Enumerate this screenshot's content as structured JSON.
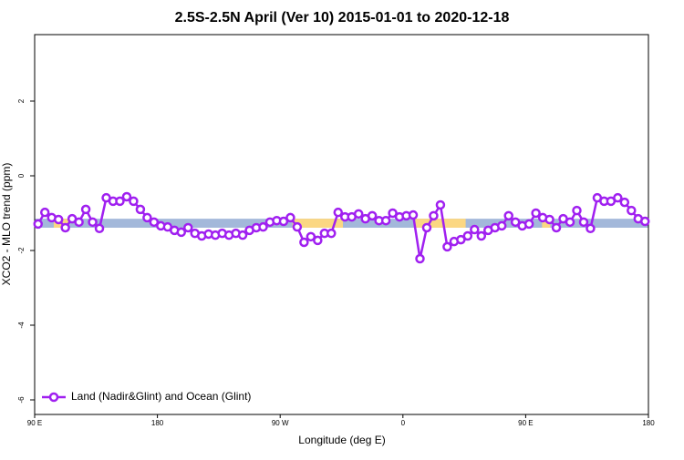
{
  "chart_data": {
    "type": "line",
    "title": "2.5S-2.5N April (Ver 10)   2015-01-01 to 2020-12-18",
    "x_label": "Longitude (deg E)",
    "y_label": "XCO2 - MLO trend (ppm)",
    "xlim": [
      90,
      540
    ],
    "ylim": [
      -6.39,
      3.78
    ],
    "xticks": [
      {
        "value": 90,
        "label": "90 E"
      },
      180,
      {
        "value": 270,
        "label": "90 W"
      },
      {
        "value": 360,
        "label": "0"
      },
      {
        "value": 450,
        "label": "90 E"
      },
      {
        "value": 540,
        "label": "180"
      }
    ],
    "yticks": [
      -6,
      -4,
      -2,
      0,
      2
    ],
    "band": {
      "low": -1.39,
      "high": -1.15,
      "color": "#a3b8da",
      "highlights": [
        {
          "from": 104,
          "to": 115,
          "color": "#fbd782"
        },
        {
          "from": 279,
          "to": 316,
          "color": "#fbd782"
        },
        {
          "from": 369,
          "to": 406,
          "color": "#fbd782"
        },
        {
          "from": 462,
          "to": 468,
          "color": "#fbd782"
        }
      ]
    },
    "legend": "bottom-left",
    "x": [
      92.5,
      97.5,
      102.5,
      107.5,
      112.5,
      117.5,
      122.5,
      127.5,
      132.5,
      137.5,
      142.5,
      147.5,
      152.5,
      157.5,
      162.5,
      167.5,
      172.5,
      177.5,
      182.5,
      187.5,
      192.5,
      197.5,
      202.5,
      207.5,
      212.5,
      217.5,
      222.5,
      227.5,
      232.5,
      237.5,
      242.5,
      247.5,
      252.5,
      257.5,
      262.5,
      267.5,
      272.5,
      277.5,
      282.5,
      287.5,
      292.5,
      297.5,
      302.5,
      307.5,
      312.5,
      317.5,
      322.5,
      327.5,
      332.5,
      337.5,
      342.5,
      347.5,
      352.5,
      357.5,
      362.5,
      367.5,
      372.5,
      377.5,
      382.5,
      387.5,
      392.5,
      397.5,
      402.5,
      407.5,
      412.5,
      417.5,
      422.5,
      427.5,
      432.5,
      437.5,
      442.5,
      447.5,
      452.5,
      457.5,
      462.5,
      467.5,
      472.5,
      477.5,
      482.5,
      487.5,
      492.5,
      497.5,
      502.5,
      507.5,
      512.5,
      517.5,
      522.5,
      527.5,
      532.5,
      537.5
    ],
    "series": [
      {
        "name": "Land (Nadir&Glint) and Ocean (Glint)",
        "color": "#a020f0",
        "values": [
          -1.29,
          -0.98,
          -1.12,
          -1.17,
          -1.39,
          -1.15,
          -1.24,
          -0.9,
          -1.24,
          -1.41,
          -0.59,
          -0.68,
          -0.68,
          -0.56,
          -0.68,
          -0.9,
          -1.12,
          -1.24,
          -1.34,
          -1.37,
          -1.46,
          -1.51,
          -1.39,
          -1.54,
          -1.61,
          -1.56,
          -1.59,
          -1.54,
          -1.59,
          -1.54,
          -1.59,
          -1.46,
          -1.39,
          -1.37,
          -1.24,
          -1.2,
          -1.22,
          -1.12,
          -1.37,
          -1.78,
          -1.63,
          -1.73,
          -1.54,
          -1.54,
          -0.98,
          -1.1,
          -1.1,
          -1.02,
          -1.15,
          -1.07,
          -1.2,
          -1.2,
          -1.0,
          -1.1,
          -1.07,
          -1.05,
          -2.22,
          -1.39,
          -1.07,
          -0.78,
          -1.9,
          -1.76,
          -1.71,
          -1.61,
          -1.44,
          -1.61,
          -1.46,
          -1.39,
          -1.34,
          -1.07,
          -1.24,
          -1.34,
          -1.29,
          -1.0,
          -1.12,
          -1.17,
          -1.39,
          -1.15,
          -1.24,
          -0.93,
          -1.24,
          -1.41,
          -0.59,
          -0.68,
          -0.68,
          -0.59,
          -0.71,
          -0.93,
          -1.15,
          -1.22
        ]
      }
    ]
  }
}
